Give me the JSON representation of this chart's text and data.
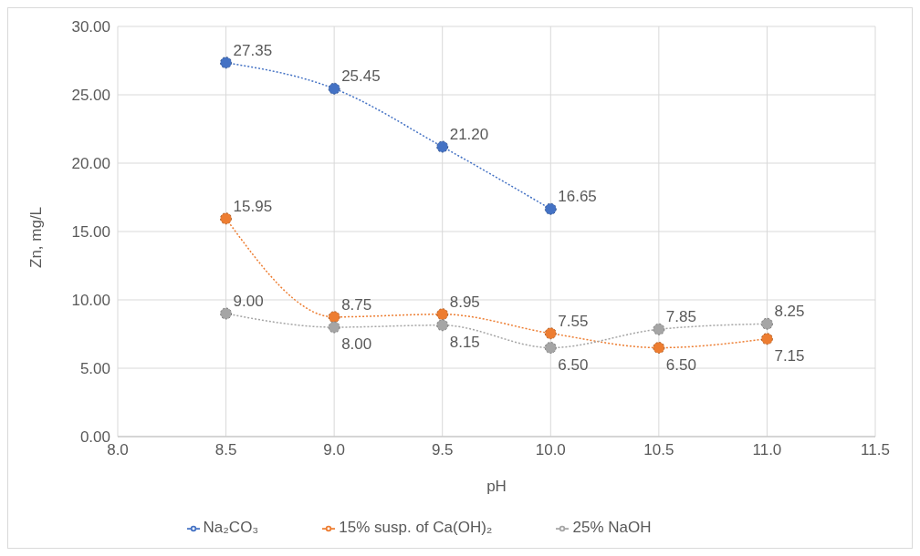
{
  "chart_data": {
    "type": "line",
    "xlabel": "pH",
    "ylabel": "Zn, mg/L",
    "xlim": [
      8,
      11.5
    ],
    "xticks": [
      {
        "value": 8,
        "label": "8.0"
      },
      {
        "value": 8.5,
        "label": "8.5"
      },
      {
        "value": 9,
        "label": "9.0"
      },
      {
        "value": 9.5,
        "label": "9.5"
      },
      {
        "value": 10,
        "label": "10.0"
      },
      {
        "value": 10.5,
        "label": "10.5"
      },
      {
        "value": 11,
        "label": "11.0"
      },
      {
        "value": 11.5,
        "label": "11.5"
      }
    ],
    "ylim": [
      0,
      30
    ],
    "yticks": [
      {
        "value": 0,
        "label": "0.00"
      },
      {
        "value": 5,
        "label": "5.00"
      },
      {
        "value": 10,
        "label": "10.00"
      },
      {
        "value": 15,
        "label": "15.00"
      },
      {
        "value": 20,
        "label": "20.00"
      },
      {
        "value": 25,
        "label": "25.00"
      },
      {
        "value": 30,
        "label": "30.00"
      }
    ],
    "series": [
      {
        "name": "Na₂CO₃",
        "color": "#4472c4",
        "x": [
          8.5,
          9,
          9.5,
          10
        ],
        "values": [
          27.35,
          25.45,
          21.2,
          16.65
        ],
        "value_labels": [
          "27.35",
          "25.45",
          "21.20",
          "16.65"
        ]
      },
      {
        "name": "15% susp. of Ca(OH)₂",
        "color": "#ed7d31",
        "x": [
          8.5,
          9,
          9.5,
          10,
          10.5,
          11
        ],
        "values": [
          15.95,
          8.75,
          8.95,
          7.55,
          6.5,
          7.15
        ],
        "value_labels": [
          "15.95",
          "8.75",
          "8.95",
          "7.55",
          "6.50",
          "7.15"
        ]
      },
      {
        "name": "25% NaOH",
        "color": "#a5a5a5",
        "x": [
          8.5,
          9,
          9.5,
          10,
          10.5,
          11
        ],
        "values": [
          9,
          8,
          8.15,
          6.5,
          7.85,
          8.25
        ],
        "value_labels": [
          "9.00",
          "8.00",
          "8.15",
          "6.50",
          "7.85",
          "8.25"
        ]
      }
    ],
    "grid": true,
    "legend": "bottom",
    "marker": "circle",
    "line_style": "dotted"
  }
}
